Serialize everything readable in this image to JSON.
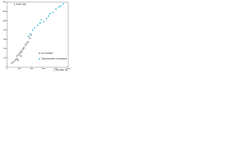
{
  "chart_data": {
    "type": "scatter",
    "y_label": "t_sheet (s)",
    "x_label": "t_cuvette (s)",
    "xlim": [
      0,
      1000
    ],
    "ylim": [
      0,
      1400
    ],
    "xticks": [
      0,
      200,
      400,
      600,
      800,
      1000
    ],
    "yticks": [
      0,
      200,
      400,
      600,
      800,
      1000,
      1200,
      1400
    ],
    "legend": "lower right",
    "series": [
      {
        "name": "no transfer",
        "color": "#333333",
        "marker": "open",
        "x": [
          80,
          110,
          140,
          160,
          170,
          190,
          210,
          230,
          240,
          260,
          280,
          300,
          320,
          340,
          370,
          390,
          230,
          180
        ],
        "values": [
          90,
          120,
          160,
          180,
          240,
          270,
          300,
          350,
          320,
          390,
          420,
          470,
          510,
          540,
          620,
          690,
          240,
          150
        ]
      },
      {
        "name": "Stat transfer in solution",
        "color": "#4fc3e8",
        "marker": "filled",
        "x": [
          350,
          380,
          420,
          450,
          500,
          540,
          560,
          600,
          650,
          680,
          700,
          750,
          800,
          850,
          880,
          920
        ],
        "values": [
          660,
          720,
          800,
          850,
          900,
          950,
          1020,
          980,
          1050,
          1100,
          1150,
          1180,
          1250,
          1300,
          1320,
          1360
        ]
      }
    ]
  }
}
